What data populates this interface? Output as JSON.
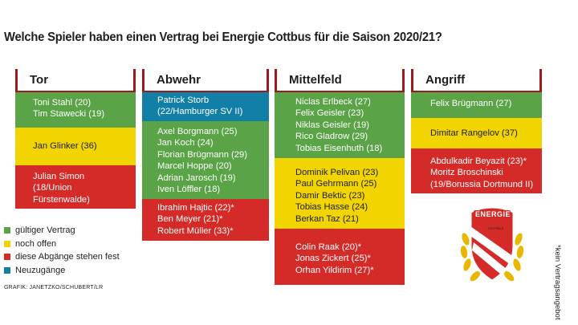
{
  "title": "Welche Spieler haben einen Vertrag bei Energie Cottbus für die Saison 2020/21?",
  "columns": {
    "tor": {
      "name": "Tor",
      "green": [
        "Toni Stahl (20)",
        "Tim Stawecki (19)"
      ],
      "yellow": [
        "Jan Glinker (36)"
      ],
      "red": [
        "Julian Simon",
        "(18/Union",
        "Fürstenwalde)"
      ]
    },
    "abwehr": {
      "name": "Abwehr",
      "blue": [
        "Patrick Storb",
        "(22/Hamburger SV II)"
      ],
      "green": [
        "Axel Borgmann (25)",
        "Jan Koch (24)",
        "Florian Brügmann (29)",
        "Marcel Hoppe (20)",
        "Adrian Jarosch (19)",
        "Iven Löffler (18)"
      ],
      "red": [
        "Ibrahim Hajtic (22)*",
        "Ben Meyer (21)*",
        "Robert Müller (33)*"
      ]
    },
    "mittelfeld": {
      "name": "Mittelfeld",
      "green": [
        "Niclas Erlbeck (27)",
        "Felix Geisler (23)",
        "Niklas Geisler (19)",
        "Rico Gladrow (29)",
        "Tobias Eisenhuth (18)"
      ],
      "yellow": [
        "Dominik Pelivan (23)",
        "Paul Gehrmann (25)",
        "Damir Bektic (23)",
        "Tobias Hasse (24)",
        "Berkan Taz (21)"
      ],
      "red": [
        "Colin Raak (20)*",
        "Jonas Zickert (25)*",
        "Orhan Yildirim (27)*"
      ]
    },
    "angriff": {
      "name": "Angriff",
      "green": [
        "Felix Brügmann (27)"
      ],
      "yellow": [
        "Dimitar Rangelov (37)"
      ],
      "red": [
        "Abdulkadir Beyazit (23)*",
        "Moritz Broschinski",
        "(19/Borussia Dortmund II)"
      ]
    }
  },
  "legend": [
    {
      "label": "gültiger Vertrag",
      "color": "#5aa347"
    },
    {
      "label": "noch offen",
      "color": "#f1d400"
    },
    {
      "label": "diese Abgänge stehen fest",
      "color": "#d42a28"
    },
    {
      "label": "Neuzugänge",
      "color": "#127fa7"
    }
  ],
  "credit": "GRAFIK: JANETZKO/SCHUBERT/LR",
  "footnote": "*kein Vertragsangebot",
  "logo": {
    "text": "ENERGIE",
    "subtext": "COTTBUS",
    "icon": "energie-cottbus-crest"
  }
}
